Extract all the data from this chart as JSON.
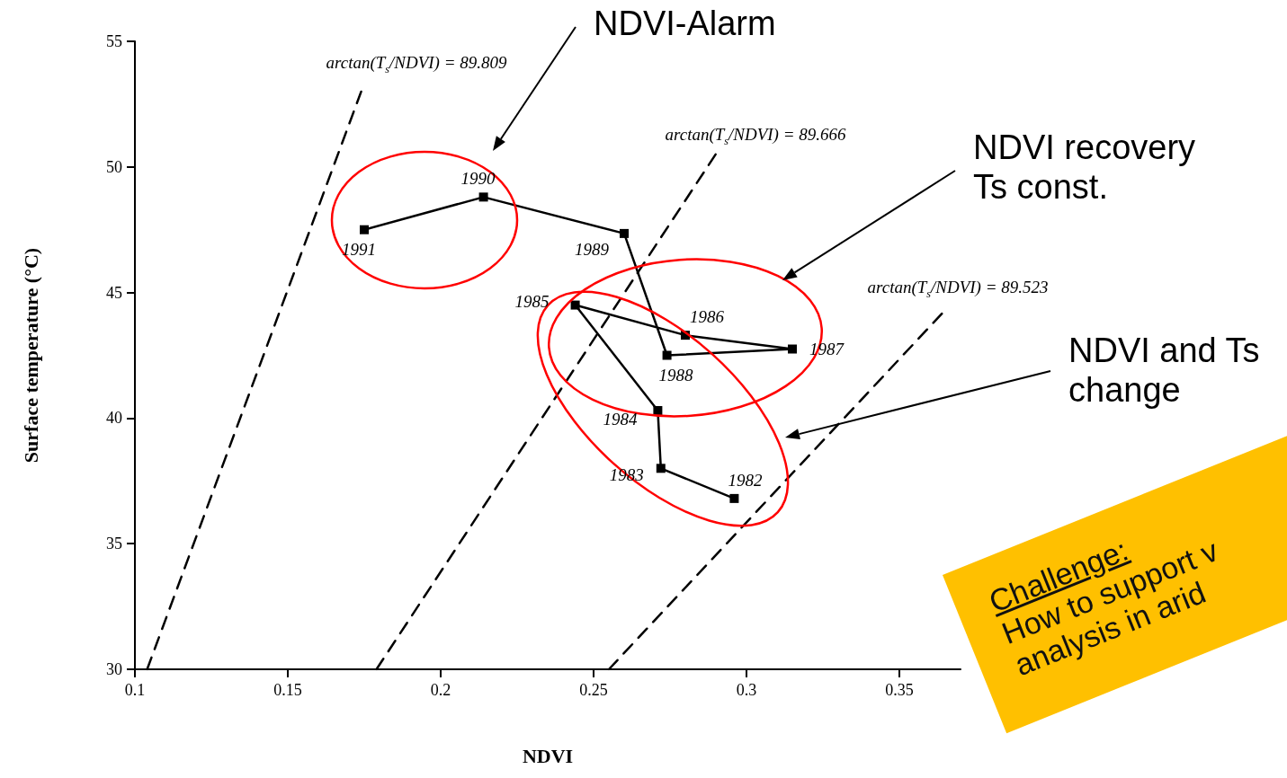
{
  "chart_data": {
    "type": "line",
    "xlabel": "NDVI",
    "ylabel": "Surface temperature (°C)",
    "xlim": [
      0.1,
      0.37
    ],
    "xticks": [
      0.1,
      0.15,
      0.2,
      0.25,
      0.3,
      0.35
    ],
    "ylim": [
      30,
      55
    ],
    "yticks": [
      30,
      35,
      40,
      45,
      50,
      55
    ],
    "series": [
      {
        "color": "#000000",
        "marker": "square",
        "line_style": "solid",
        "x": [
          0.296,
          0.272,
          0.271,
          0.244,
          0.28,
          0.315,
          0.274,
          0.26,
          0.214,
          0.175
        ],
        "values": [
          36.8,
          38.0,
          40.3,
          44.5,
          43.3,
          42.75,
          42.5,
          47.35,
          48.8,
          47.5
        ]
      },
      {
        "color": "#000000",
        "marker": "none",
        "line_style": "dashed",
        "x": [
          0.104,
          0.174
        ],
        "values": [
          30,
          53
        ]
      },
      {
        "color": "#000000",
        "marker": "none",
        "line_style": "dashed",
        "x": [
          0.179,
          0.291
        ],
        "values": [
          30,
          50.7
        ]
      },
      {
        "color": "#000000",
        "marker": "none",
        "line_style": "dashed",
        "x": [
          0.255,
          0.365
        ],
        "values": [
          30,
          44.3
        ]
      }
    ],
    "annotations": [
      "arctan(T$_{s}$/NDVI) = 89.809",
      "arctan(T$_{s}$/NDVI) = 89.666",
      "arctan(T$_{s}$/NDVI) = 89.523",
      {
        "text": "1982",
        "x": 0.296,
        "y": 36.8
      },
      {
        "text": "1983",
        "x": 0.272,
        "y": 38.0
      },
      {
        "text": "1984",
        "x": 0.271,
        "y": 40.3
      },
      {
        "text": "1985",
        "x": 0.244,
        "y": 44.5
      },
      {
        "text": "1986",
        "x": 0.28,
        "y": 43.3
      },
      {
        "text": "1987",
        "x": 0.315,
        "y": 42.75
      },
      {
        "text": "1988",
        "x": 0.274,
        "y": 42.5
      },
      {
        "text": "1989",
        "x": 0.26,
        "y": 47.35
      },
      {
        "text": "1990",
        "x": 0.214,
        "y": 48.8
      },
      {
        "text": "1991",
        "x": 0.175,
        "y": 47.5
      },
      "NDVI-Alarm",
      "NDVI recovery\nTs const.",
      "NDVI and Ts\nchange",
      "Challenge:\nHow to support v\nanalysis in arid"
    ]
  }
}
